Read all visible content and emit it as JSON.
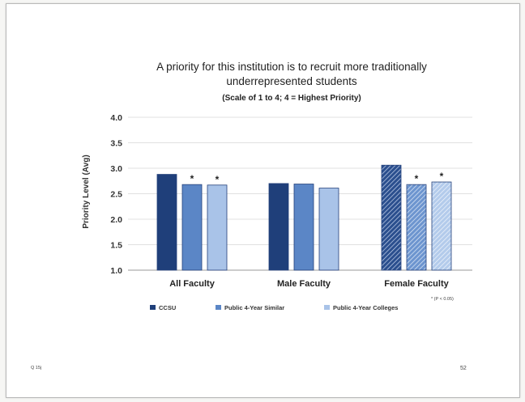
{
  "chart_data": {
    "type": "bar",
    "title_line1": "A priority for this institution is to recruit more traditionally",
    "title_line2": "underrepresented students",
    "subtitle": "(Scale of 1 to 4; 4 = Highest Priority)",
    "ylabel": "Priority Level (Avg)",
    "xlabel": "",
    "ylim": [
      1.0,
      4.0
    ],
    "yticks": [
      "1.0",
      "1.5",
      "2.0",
      "2.5",
      "3.0",
      "3.5",
      "4.0"
    ],
    "categories": [
      "All Faculty",
      "Male Faculty",
      "Female Faculty"
    ],
    "series": [
      {
        "name": "CCSU",
        "values": [
          2.88,
          2.7,
          3.06
        ]
      },
      {
        "name": "Public 4-Year Similar",
        "values": [
          2.68,
          2.69,
          2.68
        ]
      },
      {
        "name": "Public 4-Year Colleges",
        "values": [
          2.67,
          2.61,
          2.73
        ]
      }
    ],
    "significance": [
      [
        false,
        true,
        true
      ],
      [
        false,
        false,
        false
      ],
      [
        false,
        true,
        true
      ]
    ],
    "significance_marker": "*",
    "significance_note": "* (P < 0.05)",
    "grid": true,
    "legend_position": "bottom",
    "colors": {
      "ccsu": "#1f3f7a",
      "similar": "#5b86c6",
      "colleges": "#a9c3e8",
      "edge": "#23407a"
    }
  },
  "footer": {
    "question_ref": "Q 15j",
    "page_number": "52"
  }
}
